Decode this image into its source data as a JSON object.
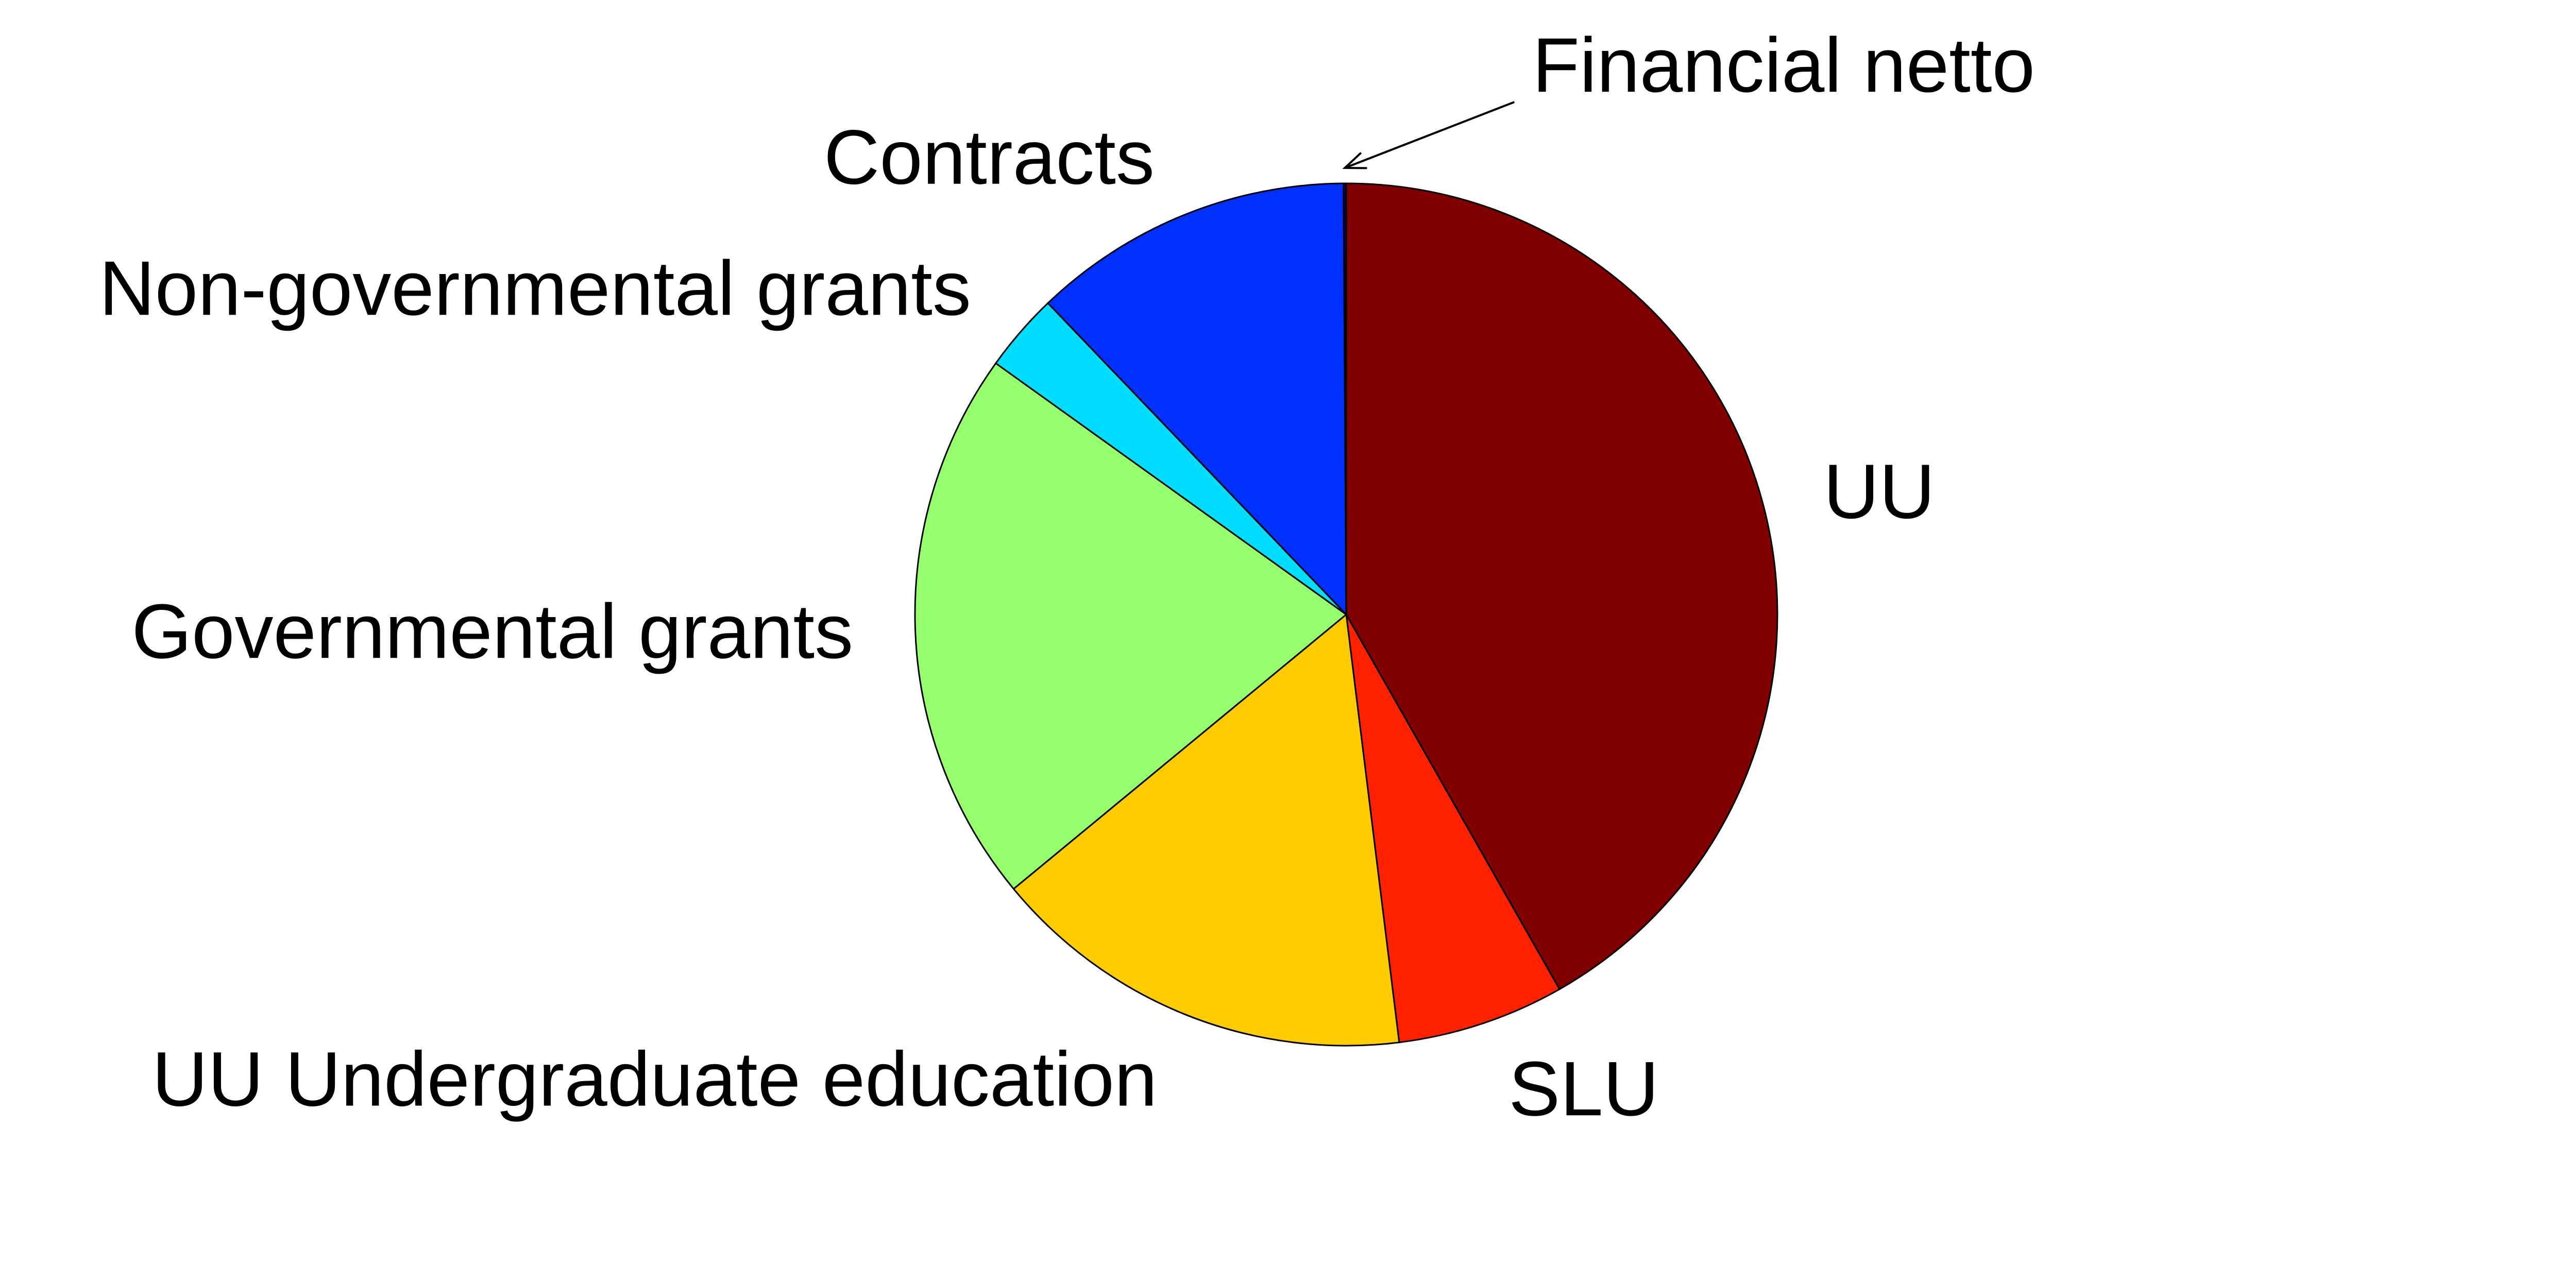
{
  "chart_data": {
    "type": "pie",
    "title": "",
    "slices": [
      {
        "label": "UU",
        "value": 42.6,
        "color": "#800000"
      },
      {
        "label": "SLU",
        "value": 6.4,
        "color": "#ff2000"
      },
      {
        "label": "UU Undergraduate education",
        "value": 16.3,
        "color": "#ffcc00"
      },
      {
        "label": "Governmental grants",
        "value": 21.3,
        "color": "#96ff6e"
      },
      {
        "label": "Non-governmental grants",
        "value": 3.0,
        "color": "#00deff"
      },
      {
        "label": "Contracts",
        "value": 12.3,
        "color": "#0030ff"
      },
      {
        "label": "Financial netto",
        "value": 0.1,
        "color": "#000080"
      }
    ],
    "start_angle": "12 o'clock",
    "direction": "clockwise",
    "legend": "none"
  }
}
